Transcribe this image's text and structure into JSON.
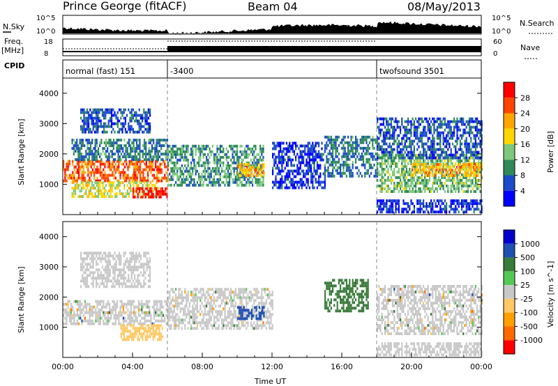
{
  "header": {
    "station": "Prince George (fitACF)",
    "beam": "Beam 04",
    "date": "08/May/2013"
  },
  "strip_labels": {
    "nsky": "N.Sky",
    "freq_line1": "Freq.",
    "freq_line2": "[MHz]",
    "cpid": "CPID",
    "nsearch": "N.Search",
    "nave": "Nave"
  },
  "strip_ticks": {
    "nsky_hi": "10^5",
    "nsky_lo": "10^0",
    "nsearch_hi": "10^5",
    "nsearch_lo": "10^0",
    "freq_hi": "18",
    "freq_lo": "8",
    "nave_hi": "60",
    "nave_lo": "0"
  },
  "cpid_segments": [
    {
      "label": "normal (fast) 151",
      "start_hr": 0
    },
    {
      "label": "-3400",
      "start_hr": 6
    },
    {
      "label": "twofsound 3501",
      "start_hr": 18
    }
  ],
  "xaxis": {
    "title": "Time UT",
    "ticks": [
      "00:00",
      "04:00",
      "08:00",
      "12:00",
      "16:00",
      "20:00",
      "00:00"
    ]
  },
  "colors": {
    "background_gray": "#c8c8c8",
    "dashed_separator": "#888888"
  },
  "chart_data": [
    {
      "type": "heatmap",
      "ylabel": "Slant Range [km]",
      "ylim": [
        0,
        4500
      ],
      "yticks": [
        "4000",
        "3000",
        "2000",
        "1000"
      ],
      "xlim_hours": [
        0,
        24
      ],
      "colorbar": {
        "label": "Power [dB]",
        "ticks": [
          "28",
          "24",
          "20",
          "16",
          "12",
          "8",
          "4"
        ],
        "range": [
          0,
          30
        ],
        "colors": [
          "#0000ff",
          "#1a4bc8",
          "#2e8b57",
          "#7dc87d",
          "#ffd700",
          "#ffa500",
          "#ff4500",
          "#ff0000"
        ]
      },
      "regions": [
        {
          "t0": 0.0,
          "t1": 6.0,
          "r0": 1100,
          "r1": 1800,
          "level": 24
        },
        {
          "t0": 0.5,
          "t1": 5.5,
          "r0": 600,
          "r1": 1100,
          "level": 16
        },
        {
          "t0": 4.0,
          "t1": 6.0,
          "r0": 600,
          "r1": 900,
          "level": 28
        },
        {
          "t0": 0.5,
          "t1": 6.0,
          "r0": 1800,
          "r1": 2500,
          "level": 8
        },
        {
          "t0": 1.0,
          "t1": 5.0,
          "r0": 2700,
          "r1": 3500,
          "level": 6
        },
        {
          "t0": 6.0,
          "t1": 11.5,
          "r0": 1000,
          "r1": 2300,
          "level": 10
        },
        {
          "t0": 10.0,
          "t1": 11.5,
          "r0": 1300,
          "r1": 1700,
          "level": 20
        },
        {
          "t0": 12.0,
          "t1": 15.0,
          "r0": 900,
          "r1": 2400,
          "level": 4
        },
        {
          "t0": 15.0,
          "t1": 18.0,
          "r0": 1300,
          "r1": 2600,
          "level": 8
        },
        {
          "t0": 18.0,
          "t1": 24.0,
          "r0": 800,
          "r1": 2000,
          "level": 12
        },
        {
          "t0": 20.0,
          "t1": 24.0,
          "r0": 1300,
          "r1": 1700,
          "level": 20
        },
        {
          "t0": 18.0,
          "t1": 24.0,
          "r0": 1900,
          "r1": 3200,
          "level": 6
        },
        {
          "t0": 18.0,
          "t1": 24.0,
          "r0": 100,
          "r1": 500,
          "level": 4
        }
      ]
    },
    {
      "type": "heatmap",
      "ylabel": "Slant Range [km]",
      "ylim": [
        0,
        4500
      ],
      "yticks": [
        "4000",
        "3000",
        "2000",
        "1000"
      ],
      "xlim_hours": [
        0,
        24
      ],
      "colorbar": {
        "label": "Velocity [m s^-1]",
        "ticks": [
          "1000",
          "500",
          "100",
          "25",
          "-25",
          "-100",
          "-500",
          "-1000"
        ],
        "range": [
          -1000,
          1000
        ],
        "colors": [
          "#ff0000",
          "#ff6a00",
          "#ff9f00",
          "#ffc864",
          "#c8c8c8",
          "#55c855",
          "#3a7a3a",
          "#1e50b4",
          "#0000cd"
        ]
      },
      "regions": [
        {
          "t0": 0.0,
          "t1": 6.0,
          "r0": 1100,
          "r1": 1900,
          "level": 0
        },
        {
          "t0": 3.3,
          "t1": 5.7,
          "r0": 600,
          "r1": 1100,
          "level": -300
        },
        {
          "t0": 1.0,
          "t1": 5.0,
          "r0": 2300,
          "r1": 3500,
          "level": -60
        },
        {
          "t0": 6.0,
          "t1": 12.0,
          "r0": 1000,
          "r1": 2300,
          "level": 0
        },
        {
          "t0": 10.0,
          "t1": 11.5,
          "r0": 1300,
          "r1": 1700,
          "level": 600
        },
        {
          "t0": 15.0,
          "t1": 17.5,
          "r0": 1500,
          "r1": 2600,
          "level": 400
        },
        {
          "t0": 18.0,
          "t1": 24.0,
          "r0": 800,
          "r1": 2400,
          "level": 0
        },
        {
          "t0": 18.0,
          "t1": 24.0,
          "r0": 100,
          "r1": 500,
          "level": -60
        }
      ]
    }
  ]
}
